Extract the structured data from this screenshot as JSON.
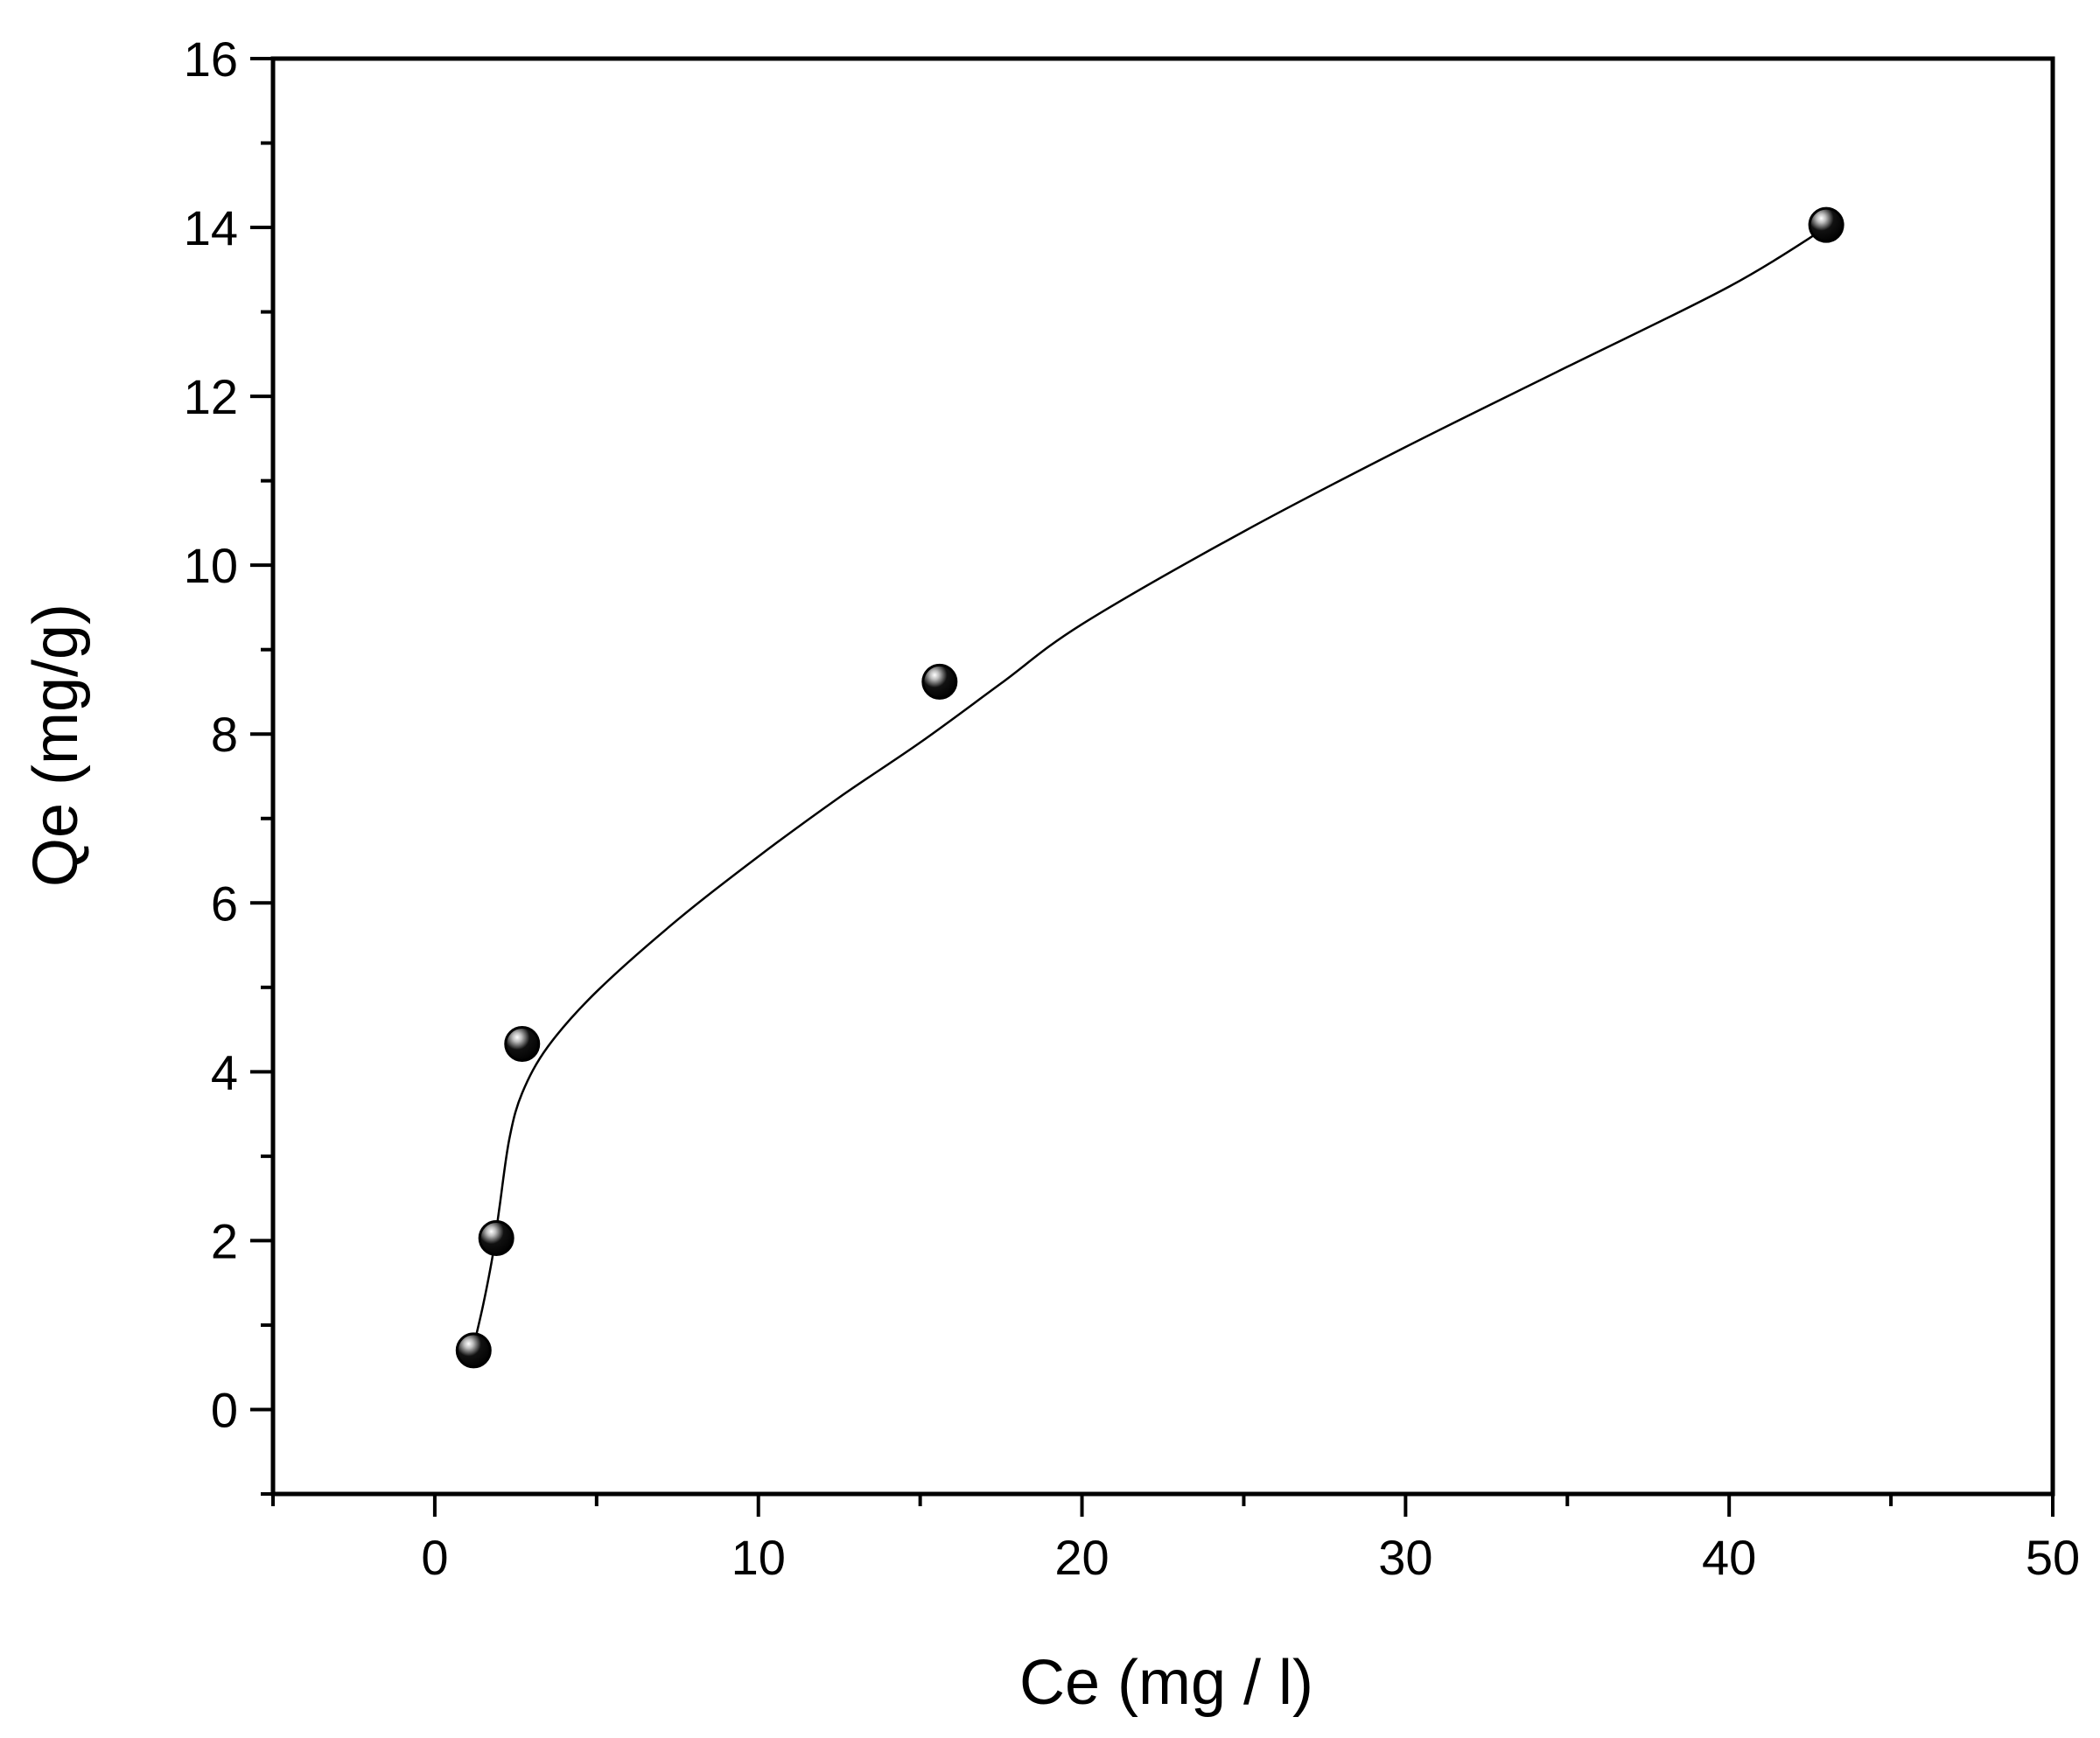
{
  "chart_data": {
    "type": "scatter",
    "xlabel": "Ce (mg / l)",
    "ylabel": "Qe (mg/g)",
    "xlim": [
      -5,
      50
    ],
    "ylim": [
      -1,
      16
    ],
    "xticks": [
      0,
      10,
      20,
      30,
      40,
      50
    ],
    "yticks": [
      0,
      2,
      4,
      6,
      8,
      10,
      12,
      14,
      16
    ],
    "x_minor_step": 5,
    "y_minor_step": 1,
    "grid": false,
    "legend": "none",
    "series": [
      {
        "points": [
          {
            "x": 1.2,
            "y": 0.7
          },
          {
            "x": 1.9,
            "y": 2.03
          },
          {
            "x": 2.7,
            "y": 4.33
          },
          {
            "x": 15.6,
            "y": 8.62
          },
          {
            "x": 43.0,
            "y": 14.03
          }
        ],
        "marker": "sphere",
        "color": "#000000"
      }
    ],
    "fit_curve": {
      "color": "#000000",
      "points": [
        {
          "x": 1.2,
          "y": 0.75
        },
        {
          "x": 1.5,
          "y": 1.25
        },
        {
          "x": 1.8,
          "y": 1.85
        },
        {
          "x": 2.0,
          "y": 2.4
        },
        {
          "x": 2.3,
          "y": 3.2
        },
        {
          "x": 2.7,
          "y": 3.75
        },
        {
          "x": 3.5,
          "y": 4.3
        },
        {
          "x": 5.0,
          "y": 4.95
        },
        {
          "x": 7.5,
          "y": 5.8
        },
        {
          "x": 10.0,
          "y": 6.55
        },
        {
          "x": 12.5,
          "y": 7.25
        },
        {
          "x": 15.0,
          "y": 7.9
        },
        {
          "x": 17.5,
          "y": 8.6
        },
        {
          "x": 20.0,
          "y": 9.3
        },
        {
          "x": 25.0,
          "y": 10.4
        },
        {
          "x": 30.0,
          "y": 11.4
        },
        {
          "x": 35.0,
          "y": 12.35
        },
        {
          "x": 40.0,
          "y": 13.3
        },
        {
          "x": 43.0,
          "y": 14.0
        }
      ]
    }
  }
}
